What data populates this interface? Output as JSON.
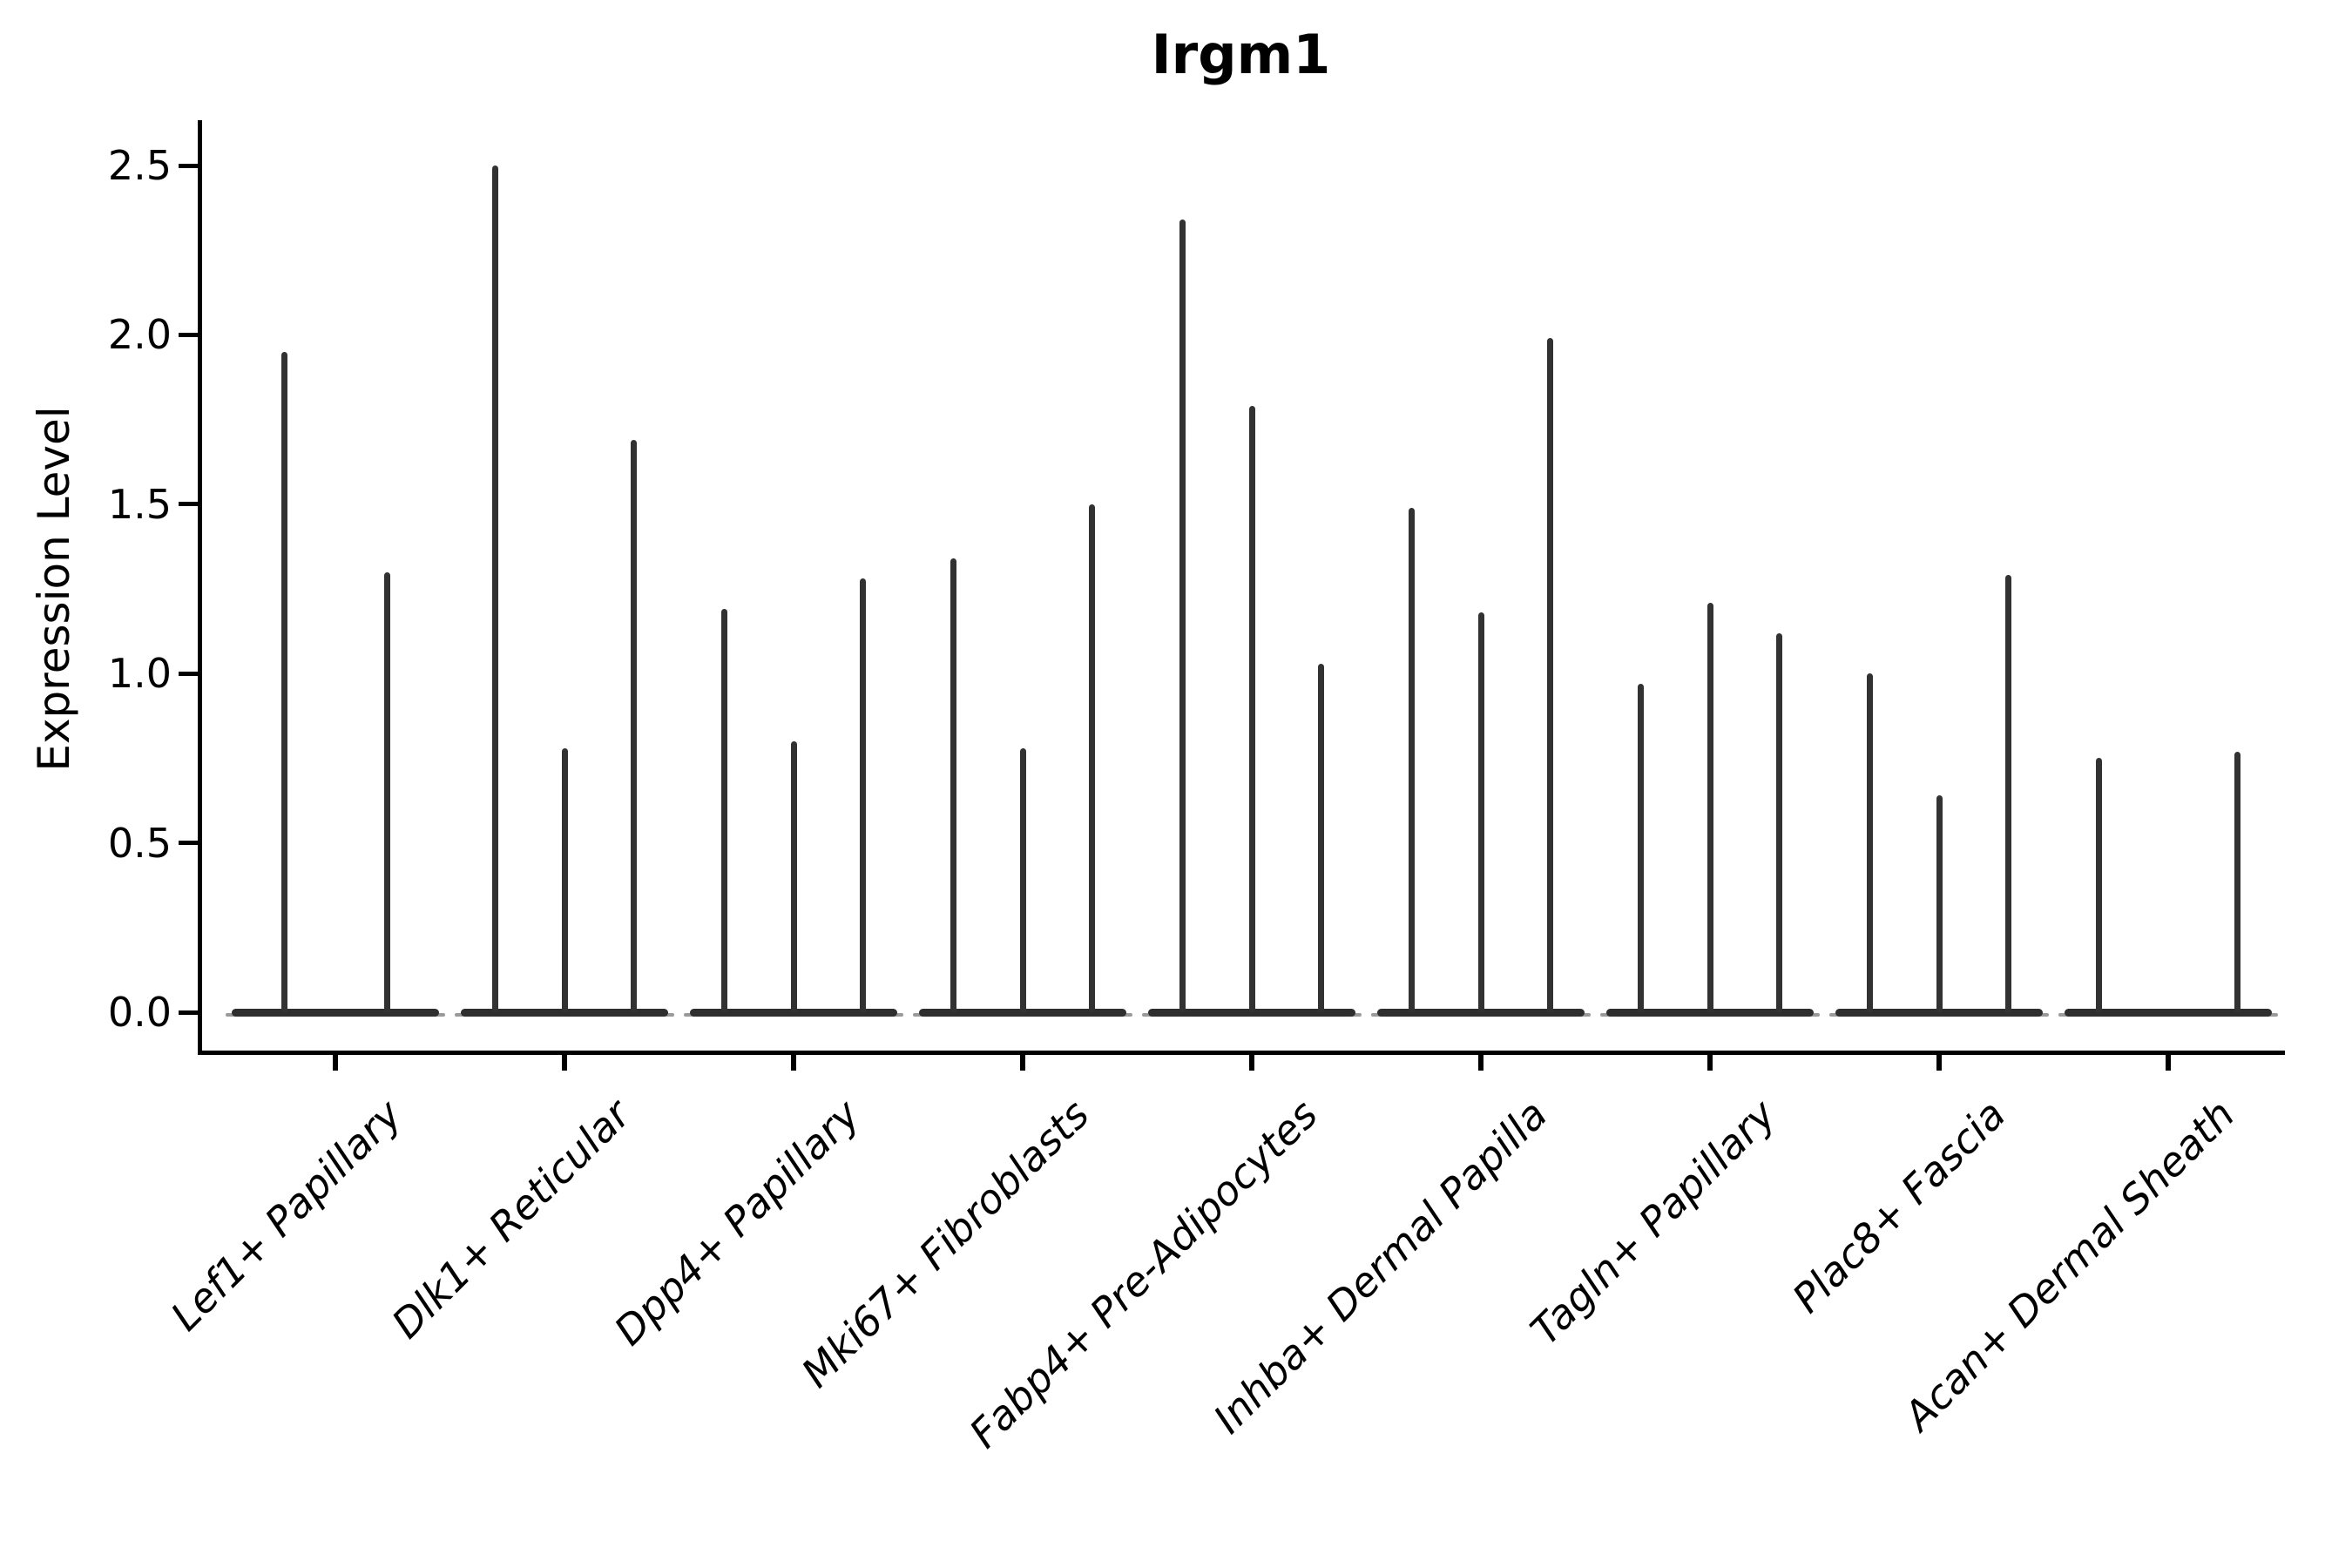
{
  "title": "Irgm1",
  "ylabel": "Expression Level",
  "colors": {
    "background": "#ffffff",
    "axis": "#000000",
    "text": "#000000",
    "violin": "#323232"
  },
  "chart_data": {
    "type": "violin",
    "title": "Irgm1",
    "xlabel": "",
    "ylabel": "Expression Level",
    "ylim": [
      -0.12,
      2.63
    ],
    "yticks": [
      0.0,
      0.5,
      1.0,
      1.5,
      2.0,
      2.5
    ],
    "ytick_labels": [
      "0.0",
      "0.5",
      "1.0",
      "1.5",
      "2.0",
      "2.5"
    ],
    "grid": false,
    "legend": false,
    "categories": [
      "Lef1+ Papillary",
      "Dlk1+ Reticular",
      "Dpp4+ Papillary",
      "Mki67+ Fibroblasts",
      "Fabp4+ Pre-Adipocytes",
      "Inhba+ Dermal Papilla",
      "Tagln+ Papillary",
      "Plac8+ Fascia",
      "Acan+ Dermal Sheath"
    ],
    "series": [
      {
        "category": "Lef1+ Papillary",
        "violin_maxima": [
          1.95,
          1.3
        ]
      },
      {
        "category": "Dlk1+ Reticular",
        "violin_maxima": [
          2.5,
          0.78,
          1.69
        ]
      },
      {
        "category": "Dpp4+ Papillary",
        "violin_maxima": [
          1.19,
          0.8,
          1.28
        ]
      },
      {
        "category": "Mki67+ Fibroblasts",
        "violin_maxima": [
          1.34,
          0.78,
          1.5
        ]
      },
      {
        "category": "Fabp4+ Pre-Adipocytes",
        "violin_maxima": [
          2.34,
          1.79,
          1.03
        ]
      },
      {
        "category": "Inhba+ Dermal Papilla",
        "violin_maxima": [
          1.49,
          1.18,
          1.99
        ]
      },
      {
        "category": "Tagln+ Papillary",
        "violin_maxima": [
          0.97,
          1.21,
          1.12
        ]
      },
      {
        "category": "Plac8+ Fascia",
        "violin_maxima": [
          1.0,
          0.64,
          1.29
        ]
      },
      {
        "category": "Acan+ Dermal Sheath",
        "violin_maxima": [
          0.75,
          0.0,
          0.77
        ]
      }
    ],
    "baseline_value": 0.0,
    "violin_shape_note": "narrow spike violins: bulk of density at 0 with thin spike to max"
  }
}
